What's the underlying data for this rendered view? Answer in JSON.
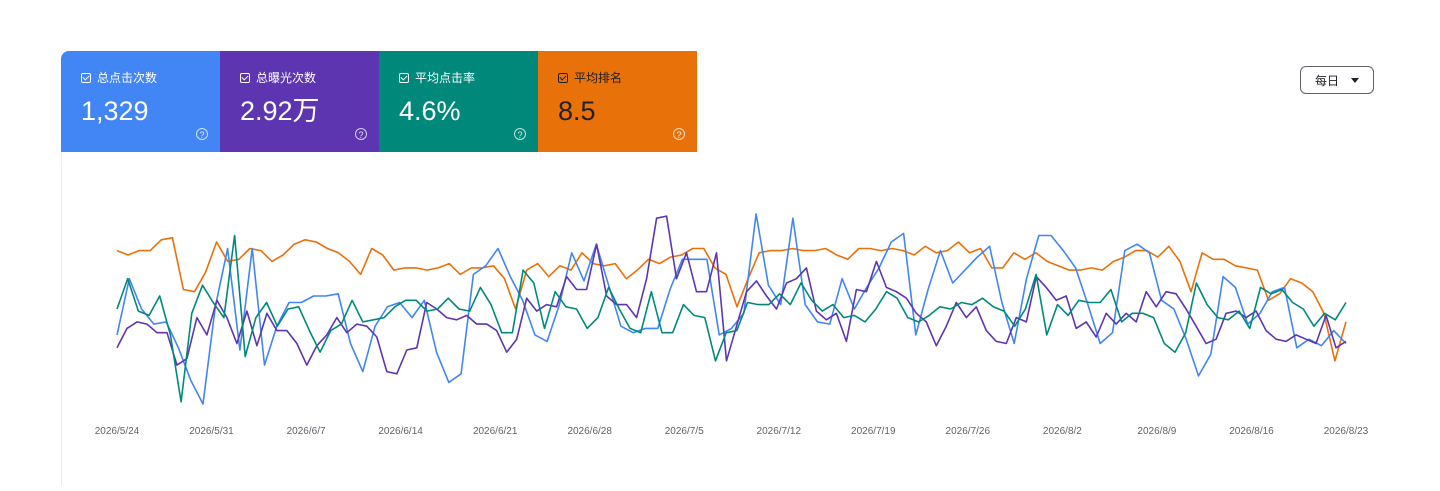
{
  "cards": [
    {
      "label": "总点击次数",
      "value": "1,329"
    },
    {
      "label": "总曝光次数",
      "value": "2.92万"
    },
    {
      "label": "平均点击率",
      "value": "4.6%"
    },
    {
      "label": "平均排名",
      "value": "8.5"
    }
  ],
  "help_glyph": "?",
  "dropdown": {
    "label": "每日"
  },
  "colors": {
    "clicks": "#4285f4",
    "impressions": "#5e35b1",
    "ctr": "#00897b",
    "position": "#e8710a"
  },
  "chart_data": {
    "type": "line",
    "x_labels": [
      "2026/5/24",
      "2026/5/31",
      "2026/6/7",
      "2026/6/14",
      "2026/6/21",
      "2026/6/28",
      "2026/7/5",
      "2026/7/12",
      "2026/7/19",
      "2026/7/26",
      "2026/8/2",
      "2026/8/9",
      "2026/8/16",
      "2026/8/23"
    ],
    "ylim": [
      0,
      100
    ],
    "grid": false,
    "series": [
      {
        "color": "#e8710a",
        "values": [
          71,
          69,
          71,
          71,
          76,
          77,
          53,
          52,
          61,
          75,
          66,
          67,
          72,
          71,
          66,
          69,
          74,
          76,
          75,
          72,
          70,
          66,
          60,
          72,
          69,
          62,
          63,
          63,
          62,
          63,
          65,
          60,
          63,
          63,
          64,
          58,
          44,
          62,
          65,
          59,
          64,
          62,
          70,
          65,
          64,
          65,
          58,
          62,
          67,
          65,
          68,
          69,
          72,
          72,
          63,
          60,
          45,
          58,
          70,
          71,
          71,
          72,
          71,
          71,
          72,
          69,
          67,
          72,
          72,
          71,
          72,
          71,
          69,
          73,
          70,
          71,
          75,
          70,
          72,
          63,
          63,
          70,
          67,
          70,
          66,
          64,
          62,
          62,
          63,
          62,
          66,
          68,
          71,
          71,
          68,
          73,
          66,
          52,
          70,
          67,
          67,
          64,
          63,
          62,
          48,
          51,
          58,
          56,
          52,
          42,
          20,
          38
        ]
      },
      {
        "color": "#4285f4",
        "values": [
          32,
          58,
          44,
          37,
          38,
          26,
          11,
          0,
          45,
          72,
          25,
          72,
          18,
          36,
          47,
          47,
          50,
          50,
          51,
          28,
          15,
          36,
          45,
          47,
          40,
          48,
          24,
          10,
          14,
          60,
          64,
          72,
          59,
          48,
          32,
          29,
          46,
          70,
          57,
          74,
          55,
          36,
          33,
          35,
          35,
          53,
          67,
          67,
          67,
          32,
          35,
          42,
          88,
          55,
          46,
          86,
          46,
          38,
          37,
          58,
          44,
          54,
          63,
          75,
          79,
          32,
          53,
          71,
          56,
          62,
          68,
          73,
          47,
          28,
          58,
          78,
          78,
          71,
          63,
          46,
          28,
          33,
          71,
          74,
          70,
          48,
          44,
          30,
          13,
          23,
          59,
          54,
          37,
          42,
          52,
          54,
          26,
          30,
          27,
          34,
          28
        ]
      },
      {
        "color": "#5e35b1",
        "values": [
          26,
          35,
          38,
          37,
          33,
          33,
          18,
          21,
          40,
          32,
          48,
          40,
          28,
          43,
          27,
          42,
          34,
          34,
          28,
          18,
          27,
          32,
          40,
          33,
          37,
          36,
          31,
          15,
          14,
          25,
          26,
          47,
          44,
          40,
          39,
          41,
          37,
          37,
          34,
          24,
          30,
          49,
          43,
          46,
          45,
          59,
          53,
          53,
          74,
          50,
          46,
          46,
          40,
          58,
          86,
          87,
          58,
          70,
          52,
          52,
          70,
          20,
          36,
          52,
          57,
          50,
          44,
          56,
          58,
          63,
          43,
          39,
          42,
          29,
          53,
          52,
          66,
          54,
          52,
          49,
          42,
          38,
          27,
          36,
          47,
          40,
          45,
          34,
          29,
          28,
          40,
          38,
          59,
          54,
          48,
          50,
          35,
          38,
          31,
          42,
          37,
          42,
          38,
          52,
          45,
          52,
          51,
          44,
          36,
          28,
          30,
          42,
          43,
          40,
          43,
          34,
          30,
          29,
          32,
          30,
          28,
          41,
          26,
          29
        ]
      },
      {
        "color": "#00897b",
        "values": [
          44,
          58,
          43,
          41,
          50,
          32,
          1,
          42,
          55,
          47,
          40,
          78,
          22,
          40,
          47,
          36,
          44,
          45,
          34,
          24,
          34,
          37,
          48,
          38,
          39,
          40,
          45,
          48,
          48,
          43,
          44,
          49,
          44,
          43,
          54,
          46,
          33,
          33,
          62,
          56,
          35,
          52,
          45,
          44,
          35,
          40,
          54,
          44,
          35,
          33,
          52,
          33,
          33,
          46,
          41,
          40,
          20,
          33,
          34,
          47,
          46,
          46,
          51,
          46,
          56,
          48,
          43,
          46,
          40,
          41,
          38,
          44,
          52,
          49,
          40,
          38,
          41,
          45,
          44,
          47,
          46,
          49,
          45,
          43,
          36,
          44,
          60,
          32,
          46,
          41,
          48,
          47,
          47,
          53,
          38,
          42,
          42,
          40,
          28,
          24,
          33,
          56,
          46,
          40,
          39,
          43,
          35,
          54,
          51,
          53,
          47,
          44,
          36,
          42,
          39,
          47
        ]
      }
    ]
  }
}
